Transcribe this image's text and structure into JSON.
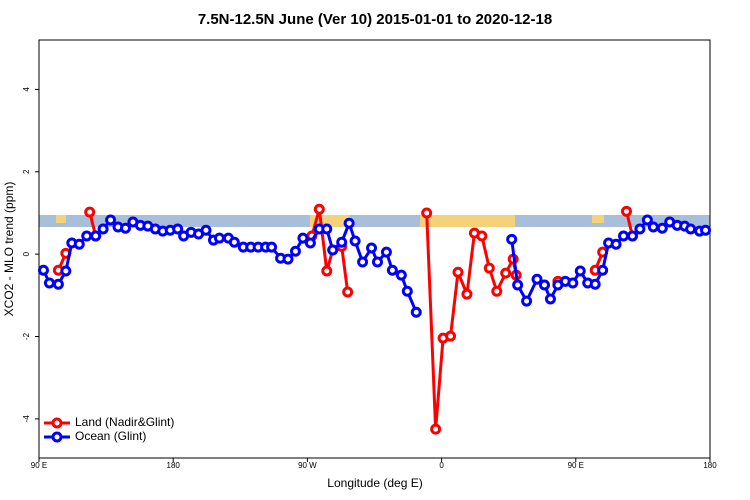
{
  "chart_data": {
    "type": "line",
    "title": "7.5N-12.5N June (Ver 10)   2015-01-01 to 2020-12-18",
    "x_label": "Longitude (deg E)",
    "y_label": "XCO2 - MLO trend (ppm)",
    "xlim": [
      90,
      540
    ],
    "ylim": [
      -4.95,
      5.2
    ],
    "xticks": [
      {
        "value": 90,
        "label": "90 E"
      },
      {
        "value": 180,
        "label": "180"
      },
      {
        "value": 270,
        "label": "90 W"
      },
      {
        "value": 360,
        "label": "0"
      },
      {
        "value": 450,
        "label": "90 E"
      },
      {
        "value": 540,
        "label": "180"
      }
    ],
    "yticks": [
      -4,
      -2,
      0,
      2,
      4
    ],
    "legend": "bottom-left",
    "series": [
      {
        "name": "Land (Nadir&Glint)",
        "color": "#ff0000",
        "x": [
          103,
          108,
          null,
          124,
          128,
          null,
          273,
          278,
          283,
          287,
          293,
          297,
          null,
          350,
          356,
          361,
          366,
          371,
          377,
          382,
          387,
          392,
          397,
          403,
          408,
          410,
          null,
          438,
          null,
          463,
          468,
          null,
          484,
          488
        ],
        "values": [
          -0.39,
          0.02,
          null,
          1.02,
          0.44,
          null,
          0.44,
          1.09,
          -0.41,
          0.1,
          0.19,
          -0.92,
          null,
          1.0,
          -4.25,
          -2.04,
          -1.99,
          -0.44,
          -0.97,
          0.51,
          0.44,
          -0.34,
          -0.9,
          -0.46,
          -0.12,
          -0.51,
          null,
          -0.66,
          null,
          -0.39,
          0.05,
          null,
          1.04,
          0.44
        ]
      },
      {
        "name": "Ocean (Glint)",
        "color": "#0000ff",
        "x": [
          93,
          97,
          103,
          108,
          112,
          117,
          122,
          128,
          133,
          138,
          143,
          148,
          153,
          158,
          163,
          168,
          173,
          178,
          183,
          187,
          192,
          197,
          202,
          207,
          211,
          217,
          221,
          227,
          232,
          237,
          242,
          246,
          252,
          257,
          262,
          267,
          272,
          278,
          283,
          287,
          293,
          298,
          302,
          307,
          313,
          317,
          323,
          327,
          333,
          337,
          343,
          null,
          407,
          411,
          417,
          424,
          429,
          433,
          438,
          443,
          448,
          453,
          458,
          463,
          468,
          472,
          477,
          482,
          488,
          493,
          498,
          502,
          508,
          513,
          518,
          523,
          527,
          533,
          537
        ],
        "values": [
          -0.39,
          -0.7,
          -0.73,
          -0.41,
          0.27,
          0.24,
          0.44,
          0.44,
          0.61,
          0.83,
          0.66,
          0.63,
          0.78,
          0.7,
          0.68,
          0.61,
          0.56,
          0.58,
          0.61,
          0.44,
          0.53,
          0.49,
          0.58,
          0.34,
          0.39,
          0.39,
          0.29,
          0.17,
          0.17,
          0.17,
          0.17,
          0.17,
          -0.1,
          -0.12,
          0.07,
          0.39,
          0.27,
          0.61,
          0.61,
          0.1,
          0.29,
          0.75,
          0.32,
          -0.19,
          0.15,
          -0.19,
          0.05,
          -0.39,
          -0.51,
          -0.9,
          -1.41,
          null,
          0.36,
          -0.75,
          -1.14,
          -0.61,
          -0.75,
          -1.09,
          -0.75,
          -0.66,
          -0.7,
          -0.41,
          -0.7,
          -0.73,
          -0.39,
          0.27,
          0.24,
          0.44,
          0.44,
          0.61,
          0.83,
          0.66,
          0.63,
          0.78,
          0.7,
          0.68,
          0.61,
          0.56,
          0.58
        ]
      }
    ]
  }
}
